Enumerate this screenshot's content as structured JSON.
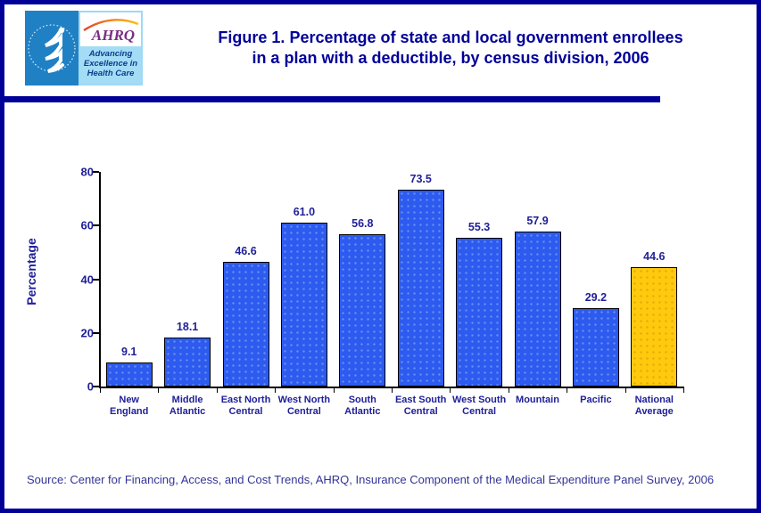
{
  "header": {
    "title_line1": "Figure 1. Percentage of state and local government enrollees",
    "title_line2": "in a plan with a deductible, by census division, 2006",
    "logo": {
      "hhs_seal_text": "DEPARTMENT OF HEALTH & HUMAN SERVICES USA",
      "ahrq_acronym": "AHRQ",
      "tagline_line1": "Advancing",
      "tagline_line2": "Excellence in",
      "tagline_line3": "Health Care"
    }
  },
  "chart_data": {
    "type": "bar",
    "title": "",
    "xlabel": "",
    "ylabel": "Percentage",
    "ylim": [
      0,
      80
    ],
    "yticks": [
      0,
      20,
      40,
      60,
      80
    ],
    "grid": false,
    "legend": null,
    "categories": [
      "New England",
      "Middle Atlantic",
      "East North Central",
      "West North Central",
      "South Atlantic",
      "East South Central",
      "West South Central",
      "Mountain",
      "Pacific",
      "National Average"
    ],
    "category_lines": [
      [
        "New",
        "England"
      ],
      [
        "Middle",
        "Atlantic"
      ],
      [
        "East North",
        "Central"
      ],
      [
        "West North",
        "Central"
      ],
      [
        "South",
        "Atlantic"
      ],
      [
        "East South",
        "Central"
      ],
      [
        "West South",
        "Central"
      ],
      [
        "Mountain"
      ],
      [
        "Pacific"
      ],
      [
        "National",
        "Average"
      ]
    ],
    "values": [
      9.1,
      18.1,
      46.6,
      61.0,
      56.8,
      73.5,
      55.3,
      57.9,
      29.2,
      44.6
    ],
    "bar_color": "#2D5BEF",
    "highlight_color": "#FFC90E",
    "highlight_index": 9,
    "bar_border_color": "#000000"
  },
  "footer": {
    "source": "Source: Center for Financing, Access, and Cost Trends, AHRQ, Insurance Component of the Medical Expenditure Panel Survey, 2006"
  },
  "colors": {
    "page_border": "#000099",
    "title_text": "#000099",
    "divider": "#000099",
    "axis_text": "#202099",
    "source_text": "#333399",
    "hhs_blue": "#2080C4",
    "ahrq_purple": "#7A2C86",
    "ahrq_arc_orange": "#E8412C",
    "ahrq_arc_yellow": "#F9C20A",
    "tagline_bg": "#A4DCF5",
    "tagline_text": "#0A3D8F"
  }
}
